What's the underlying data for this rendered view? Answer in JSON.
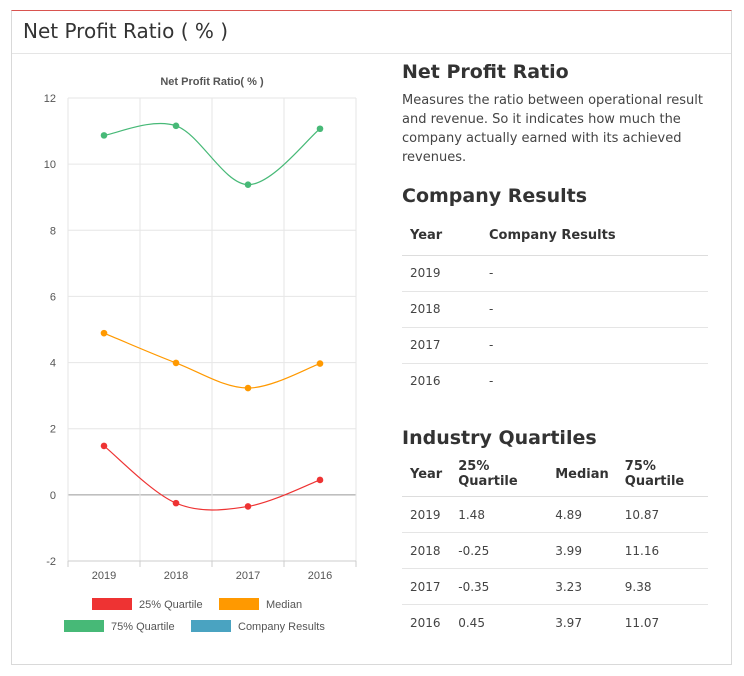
{
  "card": {
    "title": "Net Profit Ratio ( % )"
  },
  "info": {
    "heading": "Net Profit Ratio",
    "description": "Measures the ratio between operational result and revenue. So it indicates how much the company actually earned with its achieved revenues."
  },
  "company_results": {
    "heading": "Company Results",
    "columns": [
      "Year",
      "Company Results"
    ],
    "rows": [
      {
        "year": "2019",
        "value": "-"
      },
      {
        "year": "2018",
        "value": "-"
      },
      {
        "year": "2017",
        "value": "-"
      },
      {
        "year": "2016",
        "value": "-"
      }
    ]
  },
  "industry_quartiles": {
    "heading": "Industry Quartiles",
    "columns": [
      "Year",
      "25% Quartile",
      "Median",
      "75% Quartile"
    ],
    "rows": [
      {
        "year": "2019",
        "q25": "1.48",
        "median": "4.89",
        "q75": "10.87"
      },
      {
        "year": "2018",
        "q25": "-0.25",
        "median": "3.99",
        "q75": "11.16"
      },
      {
        "year": "2017",
        "q25": "-0.35",
        "median": "3.23",
        "q75": "9.38"
      },
      {
        "year": "2016",
        "q25": "0.45",
        "median": "3.97",
        "q75": "11.07"
      }
    ]
  },
  "chart_data": {
    "type": "line",
    "title": "Net Profit Ratio( % )",
    "xlabel": "",
    "ylabel": "",
    "categories": [
      "2019",
      "2018",
      "2017",
      "2016"
    ],
    "ylim": [
      -2,
      12
    ],
    "yticks": [
      -2,
      0,
      2,
      4,
      6,
      8,
      10,
      12
    ],
    "grid": true,
    "legend_position": "bottom",
    "series": [
      {
        "name": "25% Quartile",
        "color": "#ee3333",
        "values": [
          1.48,
          -0.25,
          -0.35,
          0.45
        ]
      },
      {
        "name": "Median",
        "color": "#ff9900",
        "values": [
          4.89,
          3.99,
          3.23,
          3.97
        ]
      },
      {
        "name": "75% Quartile",
        "color": "#47b977",
        "values": [
          10.87,
          11.16,
          9.38,
          11.07
        ]
      },
      {
        "name": "Company Results",
        "color": "#4aa3c1",
        "values": [
          null,
          null,
          null,
          null
        ]
      }
    ]
  }
}
